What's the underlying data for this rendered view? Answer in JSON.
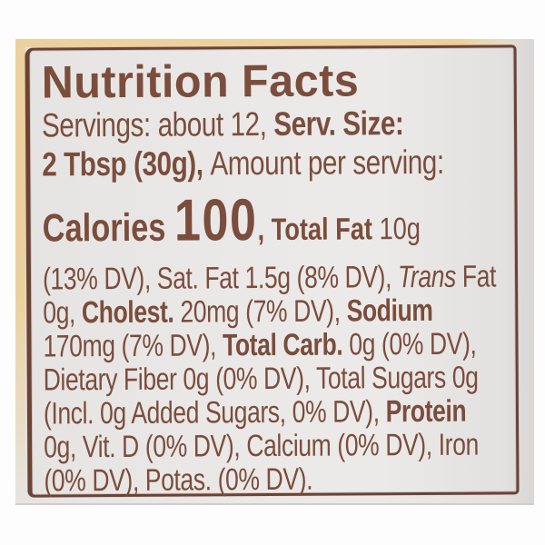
{
  "colors": {
    "backdrop": "#fdfdfd",
    "rim": "#ecd19e",
    "border": "#6a4335",
    "text": "#7b4d3c"
  },
  "label": {
    "title": "Nutrition Facts",
    "servings_line": {
      "regular": "Servings: about 12, ",
      "bold": "Serv. Size:"
    },
    "serving_size_line": {
      "bold": "2 Tbsp (30g), ",
      "regular": "Amount per serving:"
    },
    "calories_line": {
      "word": "Calories ",
      "value": "100",
      "comma": ", ",
      "total_fat_bold": "Total Fat ",
      "total_fat_value": "10g"
    },
    "fat_line": {
      "regular": "(13% DV), Sat. Fat 1.5g (8% DV), ",
      "italic": "Trans",
      "regular2": " Fat"
    },
    "cholesterol_line": {
      "regular": "0g, ",
      "bold": "Cholest. ",
      "regular2": "20mg (7% DV), ",
      "bold2": "Sodium"
    },
    "carb_line": {
      "regular": "170mg (7% DV), ",
      "bold": "Total Carb. ",
      "regular2": "0g (0% DV),"
    },
    "fiber_line": {
      "regular": "Dietary Fiber 0g (0% DV), Total Sugars 0g"
    },
    "sugars_line": {
      "regular": "(Incl. 0g Added Sugars, 0% DV), ",
      "bold": "Protein"
    },
    "vitamins_line": {
      "regular": "0g, Vit. D (0% DV), Calcium (0% DV), Iron"
    },
    "potassium_line": {
      "regular": "(0% DV), Potas. (0% DV)."
    }
  }
}
